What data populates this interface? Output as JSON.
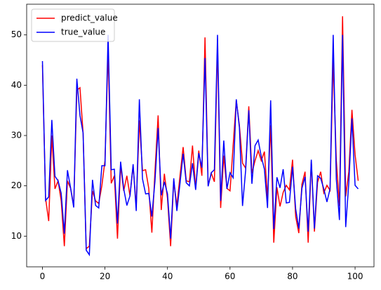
{
  "chart_data": {
    "type": "line",
    "x": [
      0,
      1,
      2,
      3,
      4,
      5,
      6,
      7,
      8,
      9,
      10,
      11,
      12,
      13,
      14,
      15,
      16,
      17,
      18,
      19,
      20,
      21,
      22,
      23,
      24,
      25,
      26,
      27,
      28,
      29,
      30,
      31,
      32,
      33,
      34,
      35,
      36,
      37,
      38,
      39,
      40,
      41,
      42,
      43,
      44,
      45,
      46,
      47,
      48,
      49,
      50,
      51,
      52,
      53,
      54,
      55,
      56,
      57,
      58,
      59,
      60,
      61,
      62,
      63,
      64,
      65,
      66,
      67,
      68,
      69,
      70,
      71,
      72,
      73,
      74,
      75,
      76,
      77,
      78,
      79,
      80,
      81,
      82,
      83,
      84,
      85,
      86,
      87,
      88,
      89,
      90,
      91,
      92,
      93,
      94,
      95,
      96,
      97,
      98,
      99,
      100,
      101
    ],
    "series": [
      {
        "name": "predict_value",
        "color": "#ff0000",
        "values": [
          44,
          17.5,
          13,
          30,
          19.4,
          21,
          17,
          8,
          21,
          19.5,
          16,
          39,
          39.5,
          30.5,
          7.5,
          8,
          19,
          17,
          16.5,
          20,
          25,
          47,
          20.5,
          22,
          9.5,
          24,
          19,
          22,
          18,
          24,
          16,
          33,
          23,
          23.2,
          19.5,
          10.7,
          23,
          34,
          15.2,
          22.4,
          17.5,
          8,
          21,
          16,
          22,
          27.7,
          21,
          20.8,
          28,
          19.5,
          27,
          22,
          49.5,
          20,
          22.5,
          20.8,
          48,
          15.6,
          26,
          19.5,
          19,
          28,
          37,
          32,
          24.5,
          23.5,
          35.8,
          22.5,
          25,
          27,
          25,
          26.8,
          17.5,
          32,
          8.7,
          19.7,
          15.9,
          18.7,
          20.1,
          19.2,
          25.2,
          13.9,
          10.6,
          20.3,
          22.8,
          8.7,
          24.8,
          10.9,
          20.7,
          22.8,
          18.6,
          20.1,
          19.1,
          45,
          25,
          16,
          53.7,
          17.9,
          22.8,
          35.1,
          26.2,
          21
        ]
      },
      {
        "name": "true_value",
        "color": "#0000ff",
        "values": [
          44.8,
          17.1,
          17.8,
          33.1,
          21.9,
          21,
          18.5,
          10.5,
          23.1,
          19.6,
          15.7,
          41.3,
          34,
          30.5,
          7.2,
          6.3,
          21.2,
          16.1,
          15.6,
          24,
          24,
          50,
          23.2,
          23.3,
          12.5,
          24.8,
          19.4,
          16.1,
          18,
          24.3,
          15,
          37.2,
          21.4,
          18.4,
          18.5,
          13.9,
          21,
          31.5,
          18.1,
          20.8,
          18.4,
          9.5,
          21.5,
          15,
          20.5,
          26.4,
          20.6,
          20,
          24.5,
          19.2,
          26.5,
          23.6,
          45.4,
          19.9,
          22.6,
          23.2,
          50,
          17,
          29,
          19.4,
          22.6,
          21.6,
          37.2,
          31.6,
          16,
          23.1,
          35,
          20.4,
          28,
          29.1,
          25.8,
          23.3,
          15.6,
          37,
          11.4,
          21.7,
          19.6,
          23.3,
          16.6,
          16.7,
          23.8,
          15.4,
          11.5,
          19.5,
          21.8,
          10.9,
          25.2,
          11.5,
          22,
          21.5,
          19.4,
          16.8,
          19.4,
          50,
          21.3,
          13.2,
          50,
          11.8,
          20.6,
          33.4,
          20.1,
          19.4
        ]
      }
    ],
    "xlim": [
      -5.05,
      106.05
    ],
    "xticks": [
      0,
      20,
      40,
      60,
      80,
      100
    ],
    "ylim": [
      3.9,
      56.1
    ],
    "yticks": [
      10,
      20,
      30,
      40,
      50
    ],
    "legend": "upper left"
  }
}
